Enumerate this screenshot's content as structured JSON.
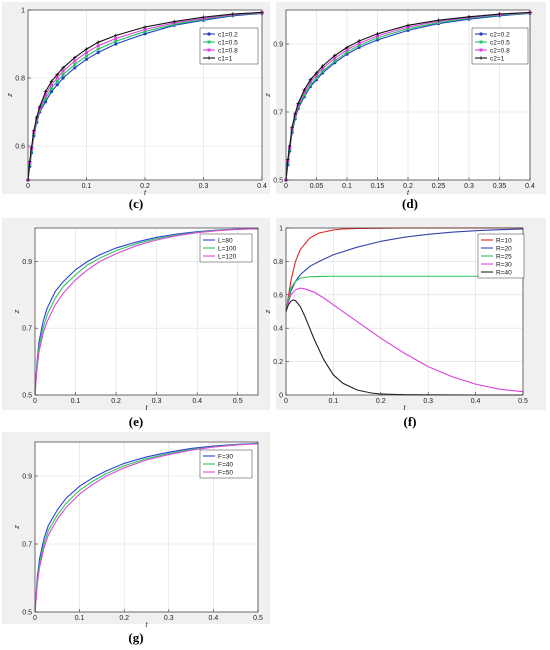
{
  "chart_data": [
    {
      "id": "c",
      "type": "line",
      "caption": "(c)",
      "xlabel": "t",
      "ylabel": "z",
      "xlim": [
        0,
        0.4
      ],
      "ylim": [
        0.5,
        1
      ],
      "xticks": [
        0,
        0.1,
        0.2,
        0.3,
        0.4
      ],
      "yticks": [
        0.6,
        0.8,
        1
      ],
      "xtick_labels": [
        "0",
        "0.1",
        "0.2",
        "0.3",
        "0.4"
      ],
      "ytick_labels": [
        "0.6",
        "0.8",
        "1"
      ],
      "grid": true,
      "legend": "top-right",
      "markers": true,
      "series": [
        {
          "name": "c1=0.2",
          "color": "#1f3fbf",
          "marker": "circle",
          "x": [
            0,
            0.003,
            0.006,
            0.01,
            0.015,
            0.02,
            0.03,
            0.04,
            0.05,
            0.06,
            0.08,
            0.1,
            0.12,
            0.15,
            0.2,
            0.25,
            0.3,
            0.35,
            0.4
          ],
          "y": [
            0.5,
            0.54,
            0.58,
            0.63,
            0.67,
            0.7,
            0.73,
            0.76,
            0.78,
            0.8,
            0.83,
            0.855,
            0.875,
            0.9,
            0.93,
            0.955,
            0.97,
            0.983,
            0.99
          ]
        },
        {
          "name": "c1=0.5",
          "color": "#22c55e",
          "marker": "square",
          "x": [
            0,
            0.003,
            0.006,
            0.01,
            0.015,
            0.02,
            0.03,
            0.04,
            0.05,
            0.06,
            0.08,
            0.1,
            0.12,
            0.15,
            0.2,
            0.25,
            0.3,
            0.35,
            0.4
          ],
          "y": [
            0.5,
            0.545,
            0.585,
            0.635,
            0.675,
            0.705,
            0.74,
            0.77,
            0.79,
            0.81,
            0.84,
            0.865,
            0.885,
            0.908,
            0.937,
            0.958,
            0.973,
            0.985,
            0.991
          ]
        },
        {
          "name": "c1=0.8",
          "color": "#e040e0",
          "marker": "square",
          "x": [
            0,
            0.003,
            0.006,
            0.01,
            0.015,
            0.02,
            0.03,
            0.04,
            0.05,
            0.06,
            0.08,
            0.1,
            0.12,
            0.15,
            0.2,
            0.25,
            0.3,
            0.35,
            0.4
          ],
          "y": [
            0.5,
            0.55,
            0.59,
            0.64,
            0.68,
            0.71,
            0.75,
            0.78,
            0.8,
            0.82,
            0.85,
            0.875,
            0.895,
            0.916,
            0.943,
            0.962,
            0.976,
            0.986,
            0.992
          ]
        },
        {
          "name": "c1=1",
          "color": "#111111",
          "marker": "plus",
          "x": [
            0,
            0.003,
            0.006,
            0.01,
            0.015,
            0.02,
            0.03,
            0.04,
            0.05,
            0.06,
            0.08,
            0.1,
            0.12,
            0.15,
            0.2,
            0.25,
            0.3,
            0.35,
            0.4
          ],
          "y": [
            0.5,
            0.555,
            0.595,
            0.645,
            0.685,
            0.715,
            0.76,
            0.79,
            0.81,
            0.83,
            0.86,
            0.885,
            0.905,
            0.925,
            0.95,
            0.966,
            0.979,
            0.988,
            0.993
          ]
        }
      ]
    },
    {
      "id": "d",
      "type": "line",
      "caption": "(d)",
      "xlabel": "t",
      "ylabel": "z",
      "xlim": [
        0,
        0.4
      ],
      "ylim": [
        0.5,
        1
      ],
      "xticks": [
        0,
        0.05,
        0.1,
        0.15,
        0.2,
        0.25,
        0.3,
        0.35,
        0.4
      ],
      "yticks": [
        0.5,
        0.7,
        0.9
      ],
      "xtick_labels": [
        "0",
        "0.05",
        "0.1",
        "0.15",
        "0.2",
        "0.25",
        "0.3",
        "0.35",
        "0.4"
      ],
      "ytick_labels": [
        "0.5",
        "0.7",
        "0.9"
      ],
      "grid": true,
      "legend": "top-right",
      "markers": true,
      "series": [
        {
          "name": "c2=0.2",
          "color": "#1f3fbf",
          "marker": "circle",
          "x": [
            0,
            0.003,
            0.006,
            0.01,
            0.015,
            0.02,
            0.03,
            0.04,
            0.05,
            0.06,
            0.08,
            0.1,
            0.12,
            0.15,
            0.2,
            0.25,
            0.3,
            0.35,
            0.4
          ],
          "y": [
            0.5,
            0.545,
            0.585,
            0.64,
            0.68,
            0.71,
            0.745,
            0.775,
            0.795,
            0.815,
            0.845,
            0.87,
            0.89,
            0.912,
            0.94,
            0.96,
            0.973,
            0.983,
            0.99
          ]
        },
        {
          "name": "c2=0.5",
          "color": "#22c55e",
          "marker": "square",
          "x": [
            0,
            0.003,
            0.006,
            0.01,
            0.015,
            0.02,
            0.03,
            0.04,
            0.05,
            0.06,
            0.08,
            0.1,
            0.12,
            0.15,
            0.2,
            0.25,
            0.3,
            0.35,
            0.4
          ],
          "y": [
            0.5,
            0.55,
            0.59,
            0.645,
            0.685,
            0.715,
            0.75,
            0.78,
            0.8,
            0.82,
            0.85,
            0.876,
            0.896,
            0.918,
            0.945,
            0.963,
            0.976,
            0.985,
            0.991
          ]
        },
        {
          "name": "c2=0.8",
          "color": "#e040e0",
          "marker": "square",
          "x": [
            0,
            0.003,
            0.006,
            0.01,
            0.015,
            0.02,
            0.03,
            0.04,
            0.05,
            0.06,
            0.08,
            0.1,
            0.12,
            0.15,
            0.2,
            0.25,
            0.3,
            0.35,
            0.4
          ],
          "y": [
            0.5,
            0.555,
            0.595,
            0.65,
            0.69,
            0.72,
            0.758,
            0.788,
            0.808,
            0.828,
            0.858,
            0.883,
            0.902,
            0.924,
            0.95,
            0.967,
            0.978,
            0.987,
            0.992
          ]
        },
        {
          "name": "c2=1",
          "color": "#111111",
          "marker": "plus",
          "x": [
            0,
            0.003,
            0.006,
            0.01,
            0.015,
            0.02,
            0.03,
            0.04,
            0.05,
            0.06,
            0.08,
            0.1,
            0.12,
            0.15,
            0.2,
            0.25,
            0.3,
            0.35,
            0.4
          ],
          "y": [
            0.5,
            0.56,
            0.6,
            0.655,
            0.695,
            0.725,
            0.765,
            0.795,
            0.815,
            0.835,
            0.866,
            0.89,
            0.909,
            0.93,
            0.955,
            0.97,
            0.98,
            0.988,
            0.993
          ]
        }
      ]
    },
    {
      "id": "e",
      "type": "line",
      "caption": "(e)",
      "xlabel": "t",
      "ylabel": "z",
      "xlim": [
        0,
        0.55
      ],
      "ylim": [
        0.5,
        1
      ],
      "xticks": [
        0,
        0.1,
        0.2,
        0.3,
        0.4,
        0.5
      ],
      "yticks": [
        0.5,
        0.7,
        0.9
      ],
      "xtick_labels": [
        "0",
        "0.1",
        "0.2",
        "0.3",
        "0.4",
        "0.5"
      ],
      "ytick_labels": [
        "0.5",
        "0.7",
        "0.9"
      ],
      "grid": true,
      "legend": "top-right",
      "markers": false,
      "series": [
        {
          "name": "L=80",
          "color": "#2b3fd6",
          "x": [
            0,
            0.005,
            0.01,
            0.02,
            0.03,
            0.05,
            0.07,
            0.1,
            0.13,
            0.16,
            0.2,
            0.25,
            0.3,
            0.35,
            0.4,
            0.45,
            0.5,
            0.55
          ],
          "y": [
            0.5,
            0.6,
            0.66,
            0.72,
            0.76,
            0.81,
            0.84,
            0.875,
            0.9,
            0.92,
            0.94,
            0.958,
            0.972,
            0.982,
            0.989,
            0.994,
            0.997,
            0.998
          ]
        },
        {
          "name": "L=100",
          "color": "#2ec45a",
          "x": [
            0,
            0.005,
            0.01,
            0.02,
            0.03,
            0.05,
            0.07,
            0.1,
            0.13,
            0.16,
            0.2,
            0.25,
            0.3,
            0.35,
            0.4,
            0.45,
            0.5,
            0.55
          ],
          "y": [
            0.5,
            0.59,
            0.645,
            0.7,
            0.74,
            0.79,
            0.825,
            0.86,
            0.89,
            0.91,
            0.932,
            0.953,
            0.968,
            0.979,
            0.987,
            0.993,
            0.996,
            0.998
          ]
        },
        {
          "name": "L=120",
          "color": "#d94ad9",
          "x": [
            0,
            0.005,
            0.01,
            0.02,
            0.03,
            0.05,
            0.07,
            0.1,
            0.13,
            0.16,
            0.2,
            0.25,
            0.3,
            0.35,
            0.4,
            0.45,
            0.5,
            0.55
          ],
          "y": [
            0.5,
            0.58,
            0.63,
            0.685,
            0.72,
            0.77,
            0.805,
            0.845,
            0.875,
            0.9,
            0.923,
            0.947,
            0.964,
            0.977,
            0.986,
            0.992,
            0.996,
            0.998
          ]
        }
      ]
    },
    {
      "id": "f",
      "type": "line",
      "caption": "(f)",
      "xlabel": "t",
      "ylabel": "z",
      "xlim": [
        0,
        0.5
      ],
      "ylim": [
        0,
        1
      ],
      "xticks": [
        0,
        0.1,
        0.2,
        0.3,
        0.4,
        0.5
      ],
      "yticks": [
        0,
        0.2,
        0.4,
        0.6,
        0.8,
        1
      ],
      "xtick_labels": [
        "0",
        "0.1",
        "0.2",
        "0.3",
        "0.4",
        "0.5"
      ],
      "ytick_labels": [
        "0",
        "0.2",
        "0.4",
        "0.6",
        "0.8",
        "1"
      ],
      "grid": true,
      "legend": "top-right",
      "markers": false,
      "series": [
        {
          "name": "R=10",
          "color": "#e02424",
          "x": [
            0,
            0.01,
            0.02,
            0.03,
            0.05,
            0.07,
            0.1,
            0.12,
            0.15,
            0.2,
            0.25,
            0.3,
            0.4,
            0.5
          ],
          "y": [
            0.5,
            0.68,
            0.8,
            0.87,
            0.94,
            0.97,
            0.988,
            0.994,
            0.997,
            0.999,
            1,
            1,
            1,
            1
          ]
        },
        {
          "name": "R=20",
          "color": "#3344aa",
          "x": [
            0,
            0.01,
            0.02,
            0.03,
            0.05,
            0.07,
            0.1,
            0.15,
            0.2,
            0.25,
            0.3,
            0.35,
            0.4,
            0.45,
            0.5
          ],
          "y": [
            0.5,
            0.62,
            0.68,
            0.72,
            0.77,
            0.8,
            0.84,
            0.885,
            0.92,
            0.945,
            0.962,
            0.975,
            0.984,
            0.99,
            0.994
          ]
        },
        {
          "name": "R=25",
          "color": "#2ec45a",
          "x": [
            0,
            0.01,
            0.02,
            0.03,
            0.05,
            0.07,
            0.1,
            0.2,
            0.3,
            0.4,
            0.5
          ],
          "y": [
            0.5,
            0.64,
            0.68,
            0.7,
            0.708,
            0.71,
            0.711,
            0.711,
            0.711,
            0.711,
            0.711
          ]
        },
        {
          "name": "R=30",
          "color": "#e040e0",
          "x": [
            0,
            0.01,
            0.02,
            0.03,
            0.04,
            0.06,
            0.08,
            0.1,
            0.15,
            0.2,
            0.25,
            0.3,
            0.35,
            0.4,
            0.45,
            0.5
          ],
          "y": [
            0.5,
            0.6,
            0.63,
            0.64,
            0.635,
            0.615,
            0.58,
            0.54,
            0.44,
            0.34,
            0.25,
            0.17,
            0.11,
            0.065,
            0.035,
            0.02
          ]
        },
        {
          "name": "R=40",
          "color": "#222222",
          "x": [
            0,
            0.005,
            0.01,
            0.015,
            0.02,
            0.03,
            0.04,
            0.05,
            0.06,
            0.08,
            0.1,
            0.12,
            0.15,
            0.18,
            0.2,
            0.25,
            0.3,
            0.4,
            0.5
          ],
          "y": [
            0.5,
            0.54,
            0.56,
            0.57,
            0.565,
            0.53,
            0.47,
            0.4,
            0.33,
            0.21,
            0.12,
            0.07,
            0.03,
            0.012,
            0.006,
            0.002,
            0.001,
            0,
            0
          ]
        }
      ]
    },
    {
      "id": "g",
      "type": "line",
      "caption": "(g)",
      "xlabel": "t",
      "ylabel": "z",
      "xlim": [
        0,
        0.5
      ],
      "ylim": [
        0.5,
        1
      ],
      "xticks": [
        0,
        0.1,
        0.2,
        0.3,
        0.4,
        0.5
      ],
      "yticks": [
        0.5,
        0.7,
        0.9
      ],
      "xtick_labels": [
        "0",
        "0.1",
        "0.2",
        "0.3",
        "0.4",
        "0.5"
      ],
      "ytick_labels": [
        "0.5",
        "0.7",
        "0.9"
      ],
      "grid": true,
      "legend": "top-right",
      "markers": false,
      "series": [
        {
          "name": "F=30",
          "color": "#2b3fd6",
          "x": [
            0,
            0.005,
            0.01,
            0.02,
            0.03,
            0.05,
            0.07,
            0.1,
            0.13,
            0.16,
            0.2,
            0.25,
            0.3,
            0.35,
            0.4,
            0.45,
            0.5
          ],
          "y": [
            0.5,
            0.6,
            0.655,
            0.715,
            0.755,
            0.8,
            0.835,
            0.87,
            0.895,
            0.915,
            0.937,
            0.956,
            0.97,
            0.981,
            0.988,
            0.993,
            0.996
          ]
        },
        {
          "name": "F=40",
          "color": "#2ec45a",
          "x": [
            0,
            0.005,
            0.01,
            0.02,
            0.03,
            0.05,
            0.07,
            0.1,
            0.13,
            0.16,
            0.2,
            0.25,
            0.3,
            0.35,
            0.4,
            0.45,
            0.5
          ],
          "y": [
            0.5,
            0.59,
            0.64,
            0.7,
            0.74,
            0.785,
            0.82,
            0.858,
            0.885,
            0.907,
            0.93,
            0.951,
            0.966,
            0.978,
            0.986,
            0.992,
            0.995
          ]
        },
        {
          "name": "F=50",
          "color": "#d94ad9",
          "x": [
            0,
            0.005,
            0.01,
            0.02,
            0.03,
            0.05,
            0.07,
            0.1,
            0.13,
            0.16,
            0.2,
            0.25,
            0.3,
            0.35,
            0.4,
            0.45,
            0.5
          ],
          "y": [
            0.5,
            0.58,
            0.63,
            0.688,
            0.727,
            0.773,
            0.808,
            0.847,
            0.876,
            0.9,
            0.924,
            0.947,
            0.963,
            0.976,
            0.985,
            0.991,
            0.995
          ]
        }
      ]
    }
  ]
}
